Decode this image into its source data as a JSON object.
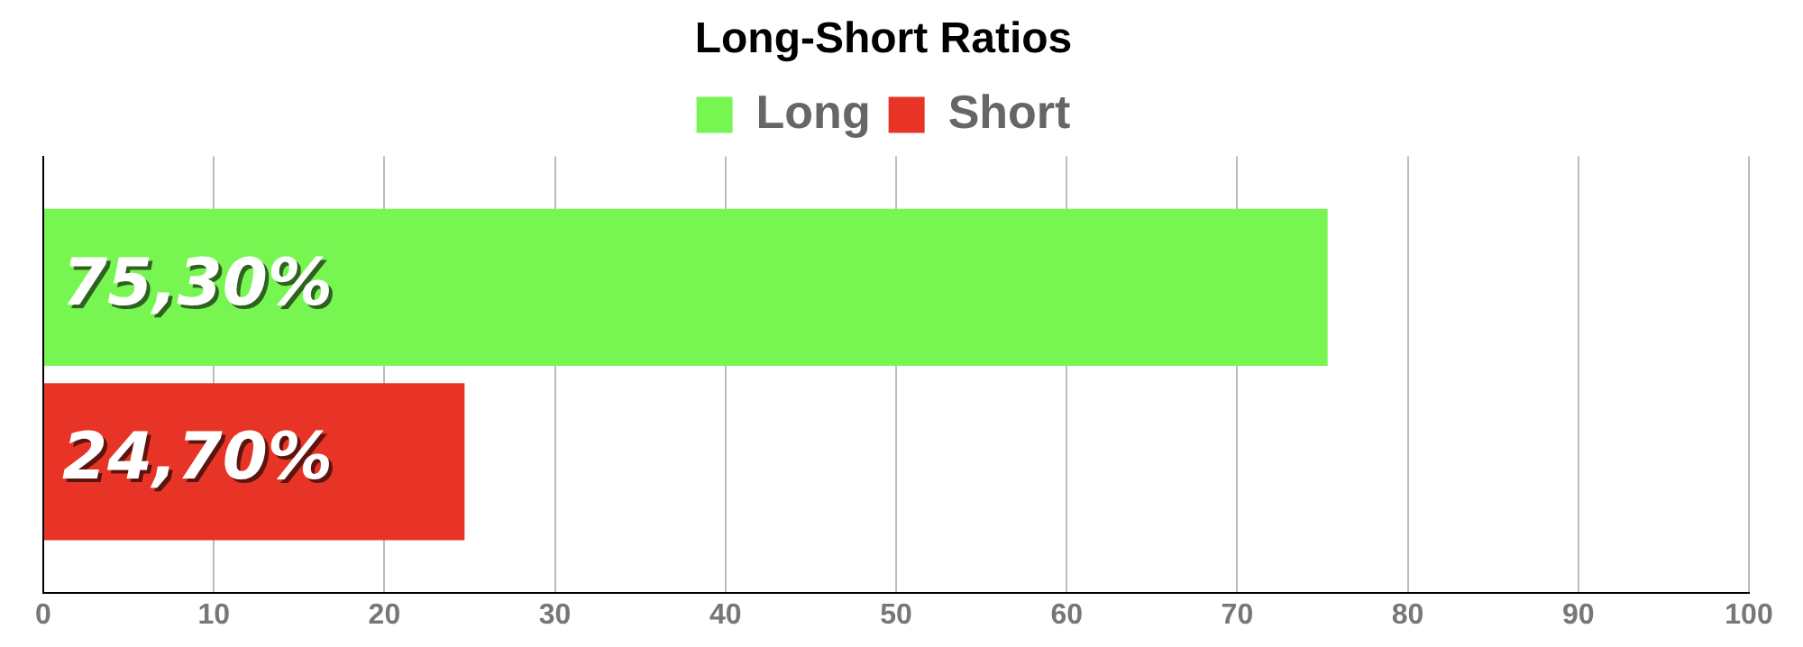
{
  "chart_data": {
    "type": "bar",
    "title": "Long-Short Ratios",
    "orientation": "horizontal",
    "categories": [
      null
    ],
    "series": [
      {
        "name": "Long",
        "color": "#77f651",
        "values": [
          75.3
        ],
        "value_labels": [
          "75,30%"
        ]
      },
      {
        "name": "Short",
        "color": "#e83427",
        "values": [
          24.7
        ],
        "value_labels": [
          "24,70%"
        ]
      }
    ],
    "xlim": [
      0,
      100
    ],
    "xticks": [
      0,
      10,
      20,
      30,
      40,
      50,
      60,
      70,
      80,
      90,
      100
    ],
    "grid": "x",
    "legend": "top"
  }
}
